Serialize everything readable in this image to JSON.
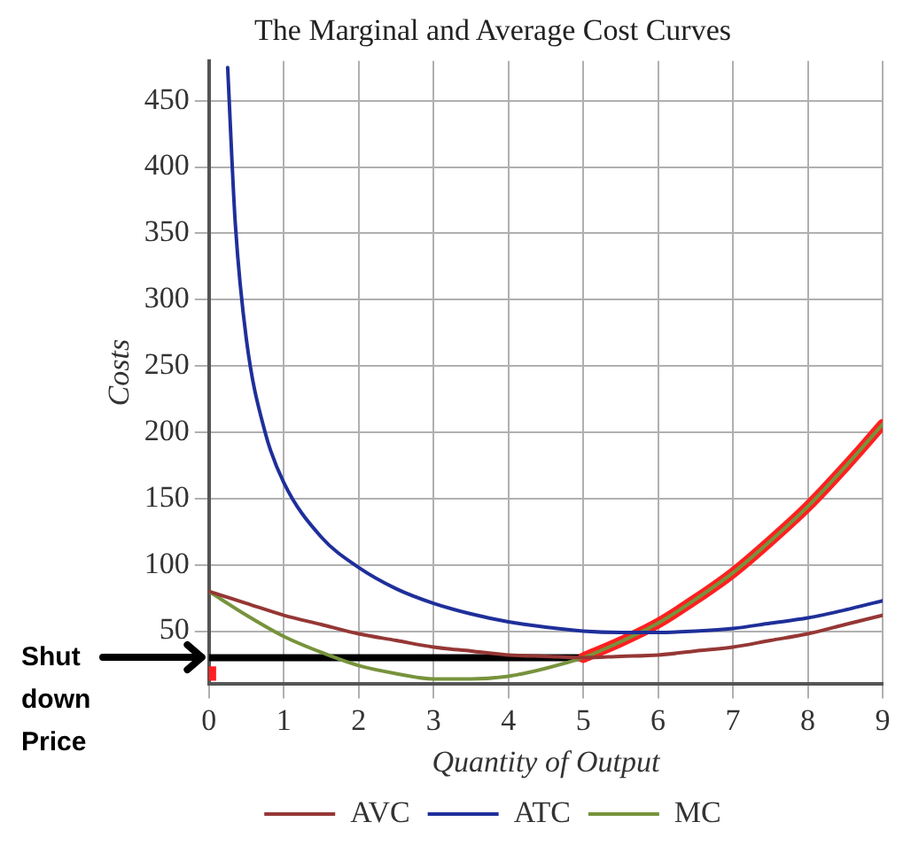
{
  "chart_data": {
    "type": "line",
    "title": "The Marginal and Average Cost Curves",
    "xlabel": "Quantity of Output",
    "ylabel": "Costs",
    "xlim": [
      0,
      9
    ],
    "xticks": [
      0,
      1,
      2,
      3,
      4,
      5,
      6,
      7,
      8,
      9
    ],
    "ylim": [
      10,
      480
    ],
    "yticks": [
      50,
      100,
      150,
      200,
      250,
      300,
      350,
      400,
      450
    ],
    "grid": true,
    "legend": "bottom",
    "marker": "none",
    "line_style": "solid",
    "annotations": [
      "Shut down Price"
    ],
    "series": [
      {
        "name": "AVC",
        "color": "#953735",
        "x": [
          0,
          0.5,
          1,
          1.5,
          2,
          2.5,
          3,
          3.5,
          4,
          4.5,
          5,
          5.5,
          6,
          6.5,
          7,
          7.5,
          8,
          8.5,
          9
        ],
        "values": [
          80,
          71,
          62,
          55,
          48,
          43,
          38,
          35,
          32,
          31,
          30,
          31,
          32,
          35,
          38,
          43,
          48,
          55,
          62
        ]
      },
      {
        "name": "ATC",
        "color": "#1f2f9a",
        "x": [
          0.25,
          0.35,
          0.5,
          0.75,
          1,
          1.5,
          2,
          2.5,
          3,
          3.5,
          4,
          4.5,
          5,
          5.5,
          6,
          6.5,
          7,
          7.5,
          8,
          8.5,
          9
        ],
        "values": [
          475,
          359,
          270,
          200,
          162,
          121,
          98,
          82,
          71,
          63,
          57,
          53,
          50,
          49,
          49,
          50,
          52,
          56,
          60,
          66,
          73
        ]
      },
      {
        "name": "MC",
        "color": "#77933c",
        "x": [
          0,
          0.5,
          1,
          1.5,
          2,
          2.5,
          3,
          3.5,
          4,
          4.5,
          5,
          5.5,
          6,
          6.5,
          7,
          7.5,
          8,
          8.5,
          9
        ],
        "values": [
          80,
          62,
          46,
          34,
          24,
          18,
          14,
          14,
          16,
          22,
          30,
          42,
          56,
          74,
          94,
          118,
          144,
          174,
          206
        ]
      },
      {
        "color": "#ff2020",
        "x": [
          5,
          5.5,
          6,
          6.5,
          7,
          7.5,
          8,
          8.5,
          9
        ],
        "values": [
          30,
          42,
          56,
          74,
          94,
          118,
          144,
          174,
          206
        ]
      },
      {
        "color": "#000000",
        "x": [
          0,
          5
        ],
        "values": [
          30,
          30
        ]
      },
      {
        "type": "scatter",
        "marker": "square",
        "color": "#ff2020",
        "x": [
          0
        ],
        "values": [
          18
        ]
      }
    ]
  }
}
